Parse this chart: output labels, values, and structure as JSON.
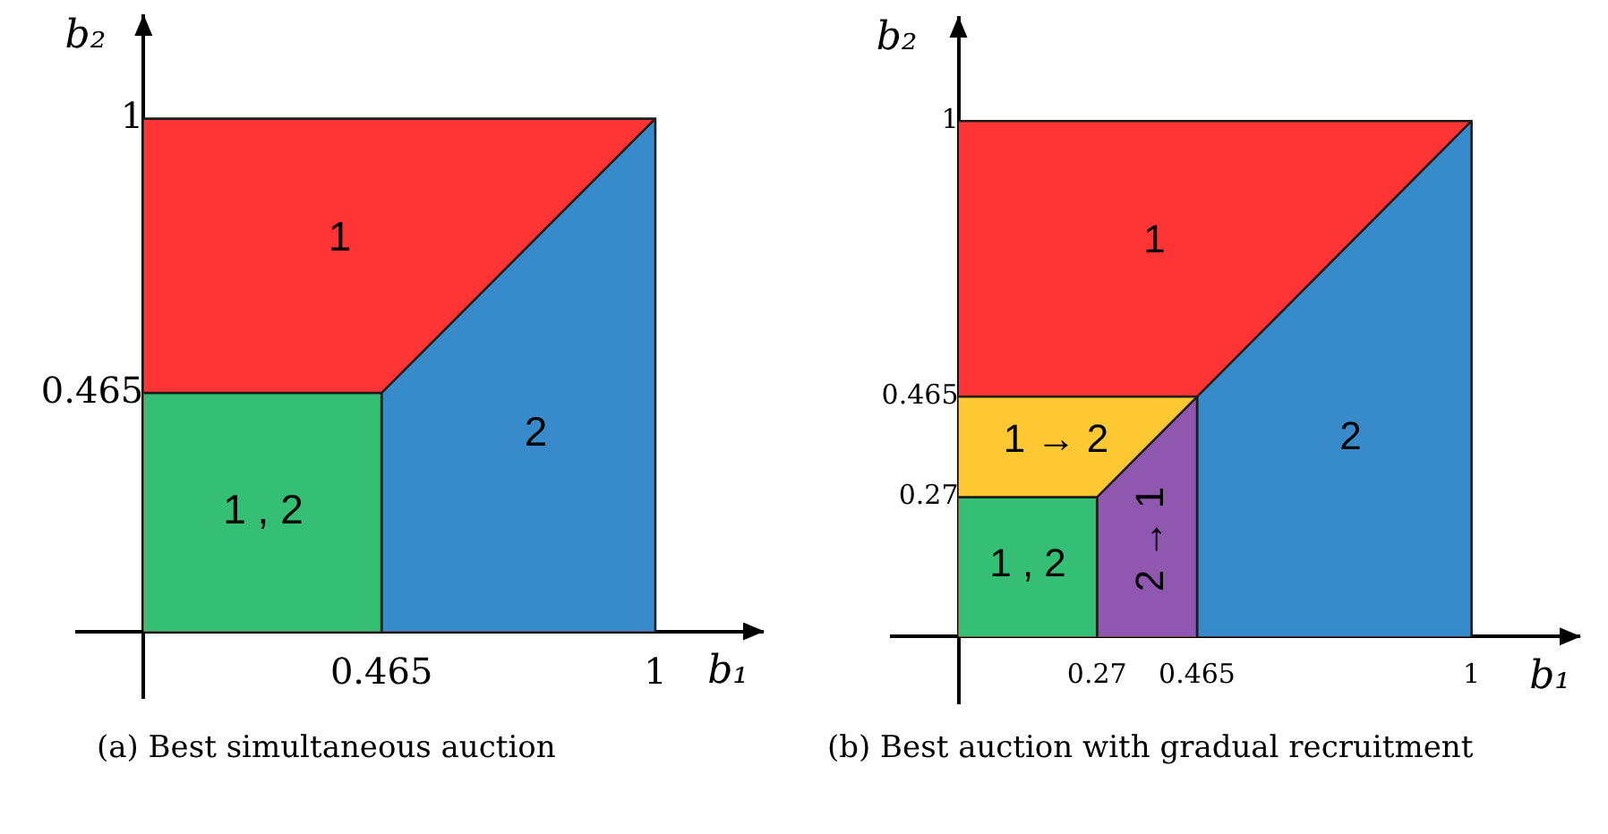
{
  "chart_data": [
    {
      "type": "area",
      "series": [
        {
          "name": "1 , 2",
          "color": "#34bf74",
          "x": [
            0,
            0.465,
            0.465
          ],
          "values": [
            0.465,
            0.465,
            0
          ]
        },
        {
          "name": "2",
          "color": "#378bcb",
          "x": [
            0.465,
            0.465,
            1,
            1
          ],
          "values": [
            0,
            0.465,
            1,
            0
          ]
        },
        {
          "name": "1",
          "color": "#ff3535",
          "x": [
            0,
            1
          ],
          "values": [
            1,
            1
          ]
        }
      ],
      "xlim": [
        -0.13,
        1.21
      ],
      "ylim": [
        -0.13,
        1.2
      ],
      "xticks": [
        0.465,
        1
      ],
      "yticks": [
        0.465,
        1
      ],
      "xlabel": "b₁",
      "ylabel": "b₂",
      "annotations": [
        "(a) Best simultaneous auction"
      ]
    },
    {
      "type": "area",
      "series": [
        {
          "name": "1 , 2",
          "color": "#34bf74",
          "x": [
            0,
            0.27,
            0.27
          ],
          "values": [
            0.27,
            0.27,
            0
          ]
        },
        {
          "name": "2 → 1",
          "color": "#8f57b0",
          "x": [
            0.27,
            0.27,
            0.465,
            0.465
          ],
          "values": [
            0,
            0.27,
            0.465,
            0
          ]
        },
        {
          "name": "2",
          "color": "#378bcb",
          "x": [
            0.465,
            0.465,
            1,
            1
          ],
          "values": [
            0,
            0.465,
            1,
            0
          ]
        },
        {
          "name": "1 → 2",
          "color": "#fdc831",
          "x": [
            0,
            0.465
          ],
          "values": [
            0.465,
            0.465
          ]
        },
        {
          "name": "1",
          "color": "#ff3535",
          "x": [
            0,
            1
          ],
          "values": [
            1,
            1
          ]
        }
      ],
      "xlim": [
        -0.13,
        1.21
      ],
      "ylim": [
        -0.13,
        1.2
      ],
      "xticks": [
        0.27,
        0.465,
        1
      ],
      "yticks": [
        0.27,
        0.465,
        1
      ],
      "xlabel": "b₁",
      "ylabel": "b₂",
      "annotations": [
        "(b) Best auction with gradual recruitment"
      ]
    }
  ]
}
